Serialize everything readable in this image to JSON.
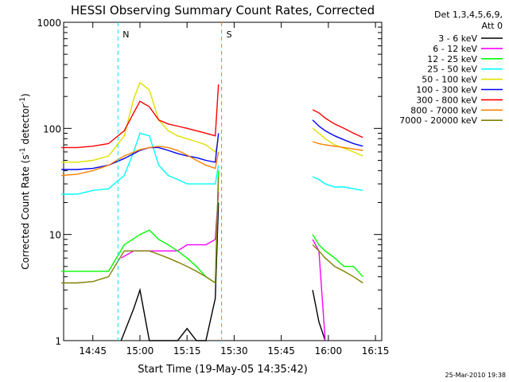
{
  "chart_data": {
    "type": "line",
    "title": "HESSI Observing Summary Count Rates, Corrected",
    "xlabel": "Start Time (19-May-05 14:35:42)",
    "ylabel_prefix": "Corrected Count Rate (s",
    "ylabel_sup1": "-1",
    "ylabel_mid": " detector",
    "ylabel_sup2": "-1",
    "ylabel_suffix": ")",
    "yscale": "log",
    "ylim": [
      1,
      1000
    ],
    "xlim": [
      "14:35:42",
      "16:17:00"
    ],
    "x_ticks": [
      "14:45",
      "15:00",
      "15:15",
      "15:30",
      "15:45",
      "16:00",
      "16:15"
    ],
    "y_ticks": [
      "1",
      "10",
      "100",
      "1000"
    ],
    "legend_header": [
      "Det 1,3,4,5,6,9,",
      "Att 0"
    ],
    "legend_position": "right",
    "footer_date": "25-Mar-2010 19:38",
    "markers": [
      {
        "label": "N",
        "color": "#00e0ff",
        "x": "14:53"
      },
      {
        "label": "S",
        "color": "#ff8000",
        "x": "15:26"
      }
    ],
    "series": [
      {
        "name": "3 - 6 keV",
        "color": "#000000",
        "x": [
          "14:54",
          "14:58",
          "15:00",
          "15:03",
          "15:06",
          "15:09",
          "15:12",
          "15:15",
          "15:18",
          "15:21",
          "15:24",
          "15:25",
          "15:55",
          "15:57",
          "15:59"
        ],
        "values": [
          1,
          2,
          3,
          1,
          1,
          1,
          1,
          1.3,
          1,
          1,
          2.5,
          20,
          3,
          1.5,
          1
        ]
      },
      {
        "name": "6 - 12 keV",
        "color": "#ff00ff",
        "x": [
          "14:54",
          "14:58",
          "15:00",
          "15:03",
          "15:06",
          "15:09",
          "15:12",
          "15:15",
          "15:18",
          "15:21",
          "15:24",
          "15:25",
          "15:55",
          "15:57",
          "15:59"
        ],
        "values": [
          6,
          7,
          7,
          7,
          7,
          7,
          7,
          8,
          8,
          8,
          9,
          25,
          9,
          7,
          1
        ]
      },
      {
        "name": "12 - 25 keV",
        "color": "#00ff00",
        "x": [
          "14:35",
          "14:40",
          "14:45",
          "14:50",
          "14:55",
          "15:00",
          "15:03",
          "15:06",
          "15:09",
          "15:12",
          "15:15",
          "15:18",
          "15:21",
          "15:24",
          "15:25",
          "15:55",
          "15:57",
          "15:59",
          "16:02",
          "16:05",
          "16:08",
          "16:11"
        ],
        "values": [
          4.5,
          4.5,
          4.5,
          4.5,
          8,
          10,
          11,
          9,
          8,
          7,
          6,
          5,
          4,
          3.5,
          40,
          10,
          8,
          7,
          6,
          5,
          5,
          4
        ]
      },
      {
        "name": "25 - 50 keV",
        "color": "#00ffff",
        "x": [
          "14:35",
          "14:40",
          "14:45",
          "14:50",
          "14:55",
          "14:58",
          "15:00",
          "15:03",
          "15:06",
          "15:09",
          "15:12",
          "15:15",
          "15:18",
          "15:21",
          "15:24",
          "15:25",
          "15:55",
          "15:57",
          "15:59",
          "16:02",
          "16:05",
          "16:08",
          "16:11"
        ],
        "values": [
          24,
          24,
          26,
          27,
          36,
          60,
          90,
          85,
          45,
          36,
          33,
          30,
          30,
          30,
          30,
          45,
          35,
          33,
          30,
          28,
          28,
          27,
          26
        ]
      },
      {
        "name": "50 - 100 keV",
        "color": "#e0e000",
        "x": [
          "14:35",
          "14:40",
          "14:45",
          "14:50",
          "14:55",
          "14:58",
          "15:00",
          "15:03",
          "15:06",
          "15:09",
          "15:12",
          "15:15",
          "15:18",
          "15:21",
          "15:24",
          "15:25",
          "15:55",
          "15:57",
          "15:59",
          "16:02",
          "16:05",
          "16:08",
          "16:11"
        ],
        "values": [
          48,
          48,
          50,
          55,
          85,
          190,
          270,
          230,
          120,
          95,
          85,
          80,
          75,
          70,
          60,
          80,
          100,
          90,
          80,
          70,
          65,
          60,
          55
        ]
      },
      {
        "name": "100 - 300 keV",
        "color": "#0000ff",
        "x": [
          "14:35",
          "14:40",
          "14:45",
          "14:50",
          "14:55",
          "15:00",
          "15:03",
          "15:06",
          "15:09",
          "15:12",
          "15:15",
          "15:18",
          "15:21",
          "15:24",
          "15:25",
          "15:55",
          "15:57",
          "15:59",
          "16:02",
          "16:05",
          "16:08",
          "16:11"
        ],
        "values": [
          41,
          41,
          42,
          45,
          52,
          62,
          66,
          66,
          62,
          58,
          55,
          53,
          50,
          48,
          90,
          120,
          105,
          95,
          85,
          78,
          72,
          68
        ]
      },
      {
        "name": "300 - 800 keV",
        "color": "#ff0000",
        "x": [
          "14:35",
          "14:40",
          "14:45",
          "14:50",
          "14:55",
          "14:58",
          "15:00",
          "15:03",
          "15:06",
          "15:09",
          "15:12",
          "15:15",
          "15:18",
          "15:21",
          "15:24",
          "15:25",
          "15:55",
          "15:57",
          "15:59",
          "16:02",
          "16:05",
          "16:08",
          "16:11"
        ],
        "values": [
          66,
          66,
          68,
          72,
          95,
          140,
          180,
          160,
          120,
          110,
          105,
          100,
          95,
          90,
          85,
          260,
          150,
          140,
          125,
          110,
          100,
          90,
          82
        ]
      },
      {
        "name": "800 - 7000 keV",
        "color": "#ff8000",
        "x": [
          "14:35",
          "14:40",
          "14:45",
          "14:50",
          "14:55",
          "15:00",
          "15:03",
          "15:06",
          "15:09",
          "15:12",
          "15:15",
          "15:18",
          "15:21",
          "15:24",
          "15:25",
          "15:55",
          "15:57",
          "15:59",
          "16:02",
          "16:05",
          "16:08",
          "16:11"
        ],
        "values": [
          36,
          37,
          40,
          45,
          55,
          63,
          66,
          68,
          66,
          62,
          56,
          50,
          45,
          42,
          60,
          75,
          72,
          70,
          68,
          66,
          64,
          62
        ]
      },
      {
        "name": "7000 - 20000 keV",
        "color": "#808000",
        "x": [
          "14:35",
          "14:40",
          "14:45",
          "14:50",
          "14:55",
          "15:00",
          "15:03",
          "15:06",
          "15:09",
          "15:12",
          "15:15",
          "15:18",
          "15:21",
          "15:24",
          "15:25",
          "15:55",
          "15:57",
          "15:59",
          "16:02",
          "16:05",
          "16:08",
          "16:11"
        ],
        "values": [
          3.5,
          3.5,
          3.6,
          4,
          7,
          7,
          7,
          6.5,
          6,
          5.5,
          5,
          4.5,
          4,
          3.5,
          35,
          8,
          7,
          6,
          5,
          4.5,
          4,
          3.5
        ]
      }
    ]
  }
}
